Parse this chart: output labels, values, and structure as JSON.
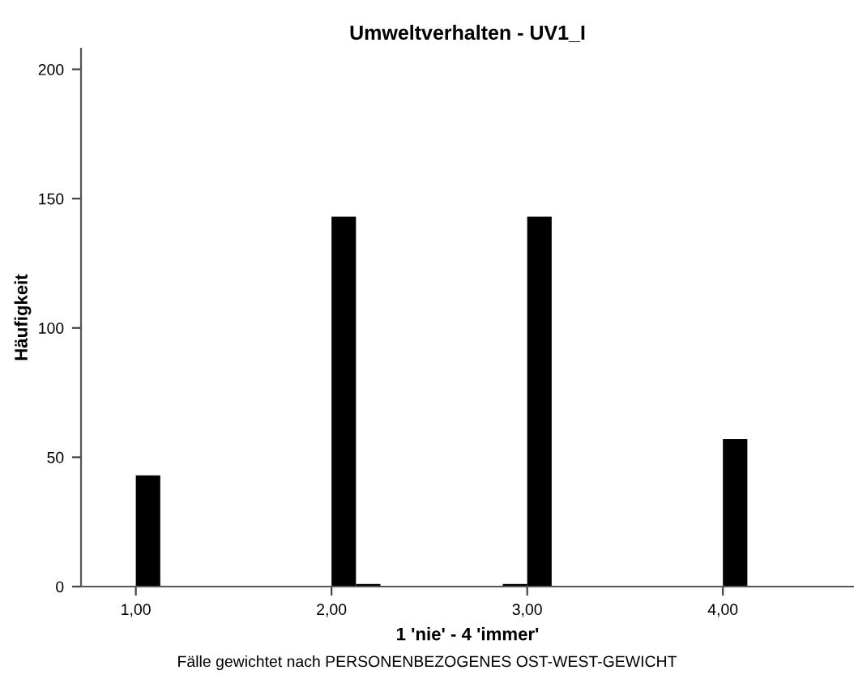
{
  "chart_data": {
    "type": "histogram",
    "title": "Umweltverhalten - UV1_I",
    "xlabel": "1 'nie' - 4 'immer'",
    "ylabel": "Häufigkeit",
    "annotations": [
      "Fälle gewichtet nach PERSONENBEZOGENES OST-WEST-GEWICHT"
    ],
    "bins": [
      1.0,
      1.125,
      1.25,
      1.375,
      1.5,
      1.625,
      1.75,
      1.875,
      2.0,
      2.125,
      2.25,
      2.375,
      2.5,
      2.625,
      2.75,
      2.875,
      3.0,
      3.125,
      3.25,
      3.375,
      3.5,
      3.625,
      3.75,
      3.875,
      4.0,
      4.125
    ],
    "values": [
      43,
      0,
      0,
      0,
      0,
      0,
      0,
      0,
      143,
      1,
      0,
      0,
      0,
      0,
      0,
      1,
      143,
      0,
      0,
      0,
      0,
      0,
      0,
      0,
      57
    ],
    "color": "#000000",
    "xlim": [
      0.72,
      4.67
    ],
    "ylim": [
      0,
      208
    ],
    "xticks": [
      {
        "value": 1,
        "label": "1,00"
      },
      {
        "value": 2,
        "label": "2,00"
      },
      {
        "value": 3,
        "label": "3,00"
      },
      {
        "value": 4,
        "label": "4,00"
      }
    ],
    "yticks": [
      0,
      50,
      100,
      150,
      200
    ],
    "grid": false,
    "legend": false
  }
}
